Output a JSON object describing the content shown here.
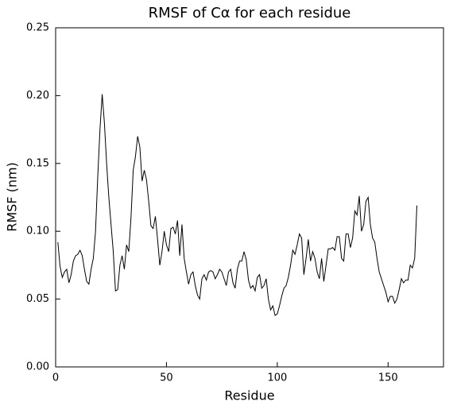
{
  "chart_data": {
    "type": "line",
    "title": "RMSF of  Cα for each residue",
    "x_label": "Residue",
    "y_label": "RMSF (nm)",
    "xlim": [
      0,
      175
    ],
    "xticks": [
      0,
      50,
      100,
      150
    ],
    "ylim": [
      0,
      0.25
    ],
    "yticks": [
      {
        "value": 0,
        "label": "0.00"
      },
      {
        "value": 0.05,
        "label": "0.05"
      },
      {
        "value": 0.1,
        "label": "0.10"
      },
      {
        "value": 0.15,
        "label": "0.15"
      },
      {
        "value": 0.2,
        "label": "0.20"
      },
      {
        "value": 0.25,
        "label": "0.25"
      }
    ],
    "color": "#000000",
    "x": [
      1,
      2,
      3,
      4,
      5,
      6,
      7,
      8,
      9,
      10,
      11,
      12,
      13,
      14,
      15,
      16,
      17,
      18,
      19,
      20,
      21,
      22,
      23,
      24,
      25,
      26,
      27,
      28,
      29,
      30,
      31,
      32,
      33,
      34,
      35,
      36,
      37,
      38,
      39,
      40,
      41,
      42,
      43,
      44,
      45,
      46,
      47,
      48,
      49,
      50,
      51,
      52,
      53,
      54,
      55,
      56,
      57,
      58,
      59,
      60,
      61,
      62,
      63,
      64,
      65,
      66,
      67,
      68,
      69,
      70,
      71,
      72,
      73,
      74,
      75,
      76,
      77,
      78,
      79,
      80,
      81,
      82,
      83,
      84,
      85,
      86,
      87,
      88,
      89,
      90,
      91,
      92,
      93,
      94,
      95,
      96,
      97,
      98,
      99,
      100,
      101,
      102,
      103,
      104,
      105,
      106,
      107,
      108,
      109,
      110,
      111,
      112,
      113,
      114,
      115,
      116,
      117,
      118,
      119,
      120,
      121,
      122,
      123,
      124,
      125,
      126,
      127,
      128,
      129,
      130,
      131,
      132,
      133,
      134,
      135,
      136,
      137,
      138,
      139,
      140,
      141,
      142,
      143,
      144,
      145,
      146,
      147,
      148,
      149,
      150,
      151,
      152,
      153,
      154,
      155,
      156,
      157,
      158,
      159,
      160,
      161,
      162,
      163
    ],
    "values": [
      0.092,
      0.074,
      0.066,
      0.07,
      0.072,
      0.062,
      0.068,
      0.078,
      0.082,
      0.083,
      0.086,
      0.082,
      0.072,
      0.063,
      0.061,
      0.072,
      0.08,
      0.1,
      0.14,
      0.175,
      0.201,
      0.18,
      0.15,
      0.125,
      0.105,
      0.085,
      0.056,
      0.057,
      0.075,
      0.082,
      0.072,
      0.09,
      0.085,
      0.11,
      0.145,
      0.155,
      0.17,
      0.162,
      0.137,
      0.145,
      0.138,
      0.122,
      0.104,
      0.102,
      0.111,
      0.094,
      0.075,
      0.085,
      0.1,
      0.09,
      0.085,
      0.102,
      0.103,
      0.098,
      0.108,
      0.082,
      0.105,
      0.08,
      0.07,
      0.061,
      0.068,
      0.07,
      0.06,
      0.053,
      0.05,
      0.065,
      0.068,
      0.064,
      0.07,
      0.071,
      0.07,
      0.065,
      0.068,
      0.072,
      0.07,
      0.065,
      0.06,
      0.07,
      0.072,
      0.062,
      0.058,
      0.072,
      0.078,
      0.078,
      0.085,
      0.079,
      0.064,
      0.058,
      0.06,
      0.056,
      0.066,
      0.068,
      0.058,
      0.06,
      0.065,
      0.05,
      0.042,
      0.045,
      0.038,
      0.039,
      0.045,
      0.052,
      0.058,
      0.06,
      0.066,
      0.075,
      0.086,
      0.083,
      0.09,
      0.098,
      0.095,
      0.068,
      0.08,
      0.094,
      0.078,
      0.085,
      0.08,
      0.07,
      0.065,
      0.08,
      0.063,
      0.075,
      0.087,
      0.087,
      0.088,
      0.086,
      0.096,
      0.096,
      0.08,
      0.078,
      0.098,
      0.098,
      0.088,
      0.095,
      0.115,
      0.112,
      0.126,
      0.1,
      0.105,
      0.122,
      0.125,
      0.105,
      0.095,
      0.092,
      0.08,
      0.07,
      0.065,
      0.06,
      0.055,
      0.048,
      0.052,
      0.052,
      0.047,
      0.05,
      0.057,
      0.065,
      0.062,
      0.064,
      0.064,
      0.075,
      0.073,
      0.08,
      0.119
    ]
  }
}
